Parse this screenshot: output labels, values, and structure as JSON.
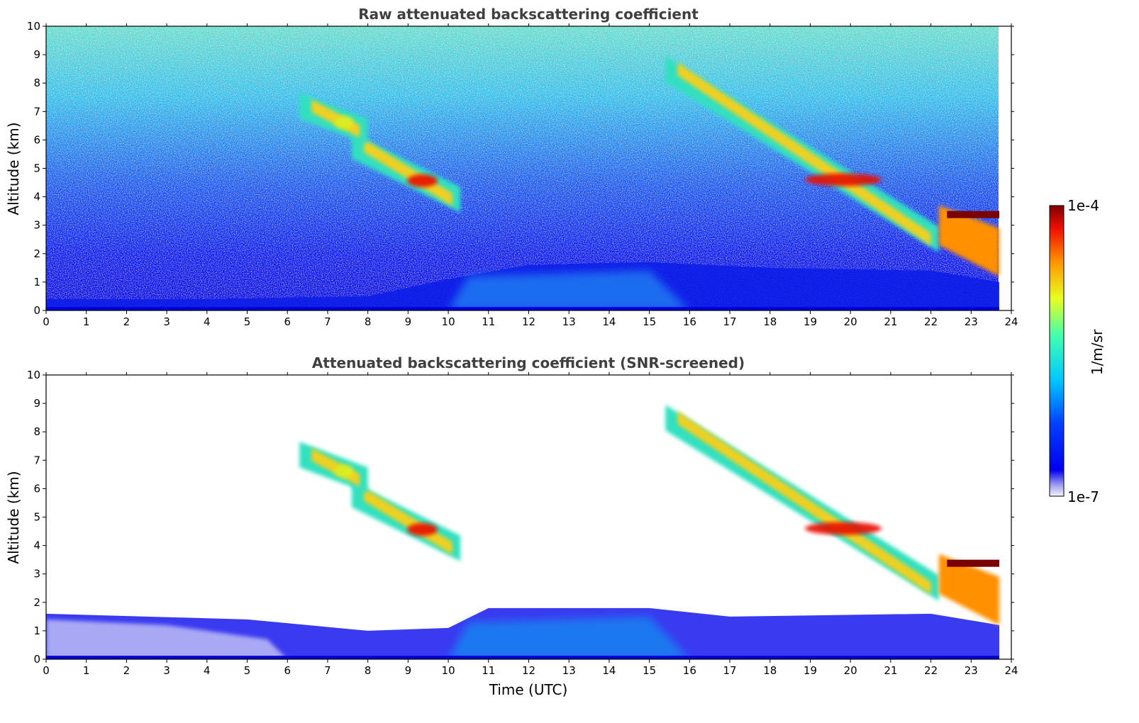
{
  "chart_data": [
    {
      "type": "heatmap",
      "title": "Raw attenuated backscattering coefficient",
      "xlabel": "",
      "ylabel": "Altitude (km)",
      "xlim": [
        0,
        24
      ],
      "ylim": [
        0,
        10
      ],
      "xticks": [
        "0",
        "1",
        "2",
        "3",
        "4",
        "5",
        "6",
        "7",
        "8",
        "9",
        "10",
        "11",
        "12",
        "13",
        "14",
        "15",
        "16",
        "17",
        "18",
        "19",
        "20",
        "21",
        "22",
        "23",
        "24"
      ],
      "yticks": [
        "0",
        "1",
        "2",
        "3",
        "4",
        "5",
        "6",
        "7",
        "8",
        "9",
        "10"
      ],
      "data_end_time": 23.7,
      "noise_background": true,
      "features": [
        {
          "kind": "boundary_layer",
          "t_start": 0,
          "t_end": 23.7,
          "top_km": [
            [
              0,
              0.4
            ],
            [
              4,
              0.4
            ],
            [
              8,
              0.5
            ],
            [
              10,
              1.1
            ],
            [
              12,
              1.6
            ],
            [
              15,
              1.7
            ],
            [
              18,
              1.5
            ],
            [
              22,
              1.4
            ],
            [
              23.7,
              1.0
            ]
          ]
        },
        {
          "kind": "cloud_band",
          "t_start": 7.6,
          "t_end": 10.3,
          "alt_start_km": 5.8,
          "alt_end_km": 3.9,
          "peak": "red"
        },
        {
          "kind": "cloud_band",
          "t_start": 6.3,
          "t_end": 8.0,
          "alt_start_km": 7.2,
          "alt_end_km": 6.3,
          "peak": "yellow"
        },
        {
          "kind": "cloud_band",
          "t_start": 15.4,
          "t_end": 22.2,
          "alt_start_km": 8.5,
          "alt_end_km": 2.5,
          "peak": "red"
        },
        {
          "kind": "cloud_layer",
          "t_start": 22.4,
          "t_end": 23.7,
          "alt_km": 3.4,
          "peak": "dark-red"
        }
      ]
    },
    {
      "type": "heatmap",
      "title": "Attenuated backscattering coefficient (SNR-screened)",
      "xlabel": "Time (UTC)",
      "ylabel": "Altitude (km)",
      "xlim": [
        0,
        24
      ],
      "ylim": [
        0,
        10
      ],
      "xticks": [
        "0",
        "1",
        "2",
        "3",
        "4",
        "5",
        "6",
        "7",
        "8",
        "9",
        "10",
        "11",
        "12",
        "13",
        "14",
        "15",
        "16",
        "17",
        "18",
        "19",
        "20",
        "21",
        "22",
        "23",
        "24"
      ],
      "yticks": [
        "0",
        "1",
        "2",
        "3",
        "4",
        "5",
        "6",
        "7",
        "8",
        "9",
        "10"
      ],
      "data_end_time": 23.7,
      "noise_background": false,
      "features": [
        {
          "kind": "boundary_layer",
          "t_start": 0,
          "t_end": 23.7,
          "top_km": [
            [
              0,
              1.6
            ],
            [
              5,
              1.4
            ],
            [
              8,
              1.0
            ],
            [
              10,
              1.1
            ],
            [
              11,
              1.8
            ],
            [
              15,
              1.8
            ],
            [
              17,
              1.5
            ],
            [
              22,
              1.6
            ],
            [
              23.7,
              1.2
            ]
          ]
        },
        {
          "kind": "cloud_band",
          "t_start": 7.6,
          "t_end": 10.3,
          "alt_start_km": 5.8,
          "alt_end_km": 3.9,
          "peak": "red"
        },
        {
          "kind": "cloud_band",
          "t_start": 6.3,
          "t_end": 8.0,
          "alt_start_km": 7.2,
          "alt_end_km": 6.3,
          "peak": "yellow"
        },
        {
          "kind": "cloud_band",
          "t_start": 15.4,
          "t_end": 22.2,
          "alt_start_km": 8.5,
          "alt_end_km": 2.5,
          "peak": "red"
        },
        {
          "kind": "cloud_layer",
          "t_start": 22.4,
          "t_end": 23.7,
          "alt_km": 3.4,
          "peak": "dark-red"
        }
      ]
    }
  ],
  "colorbar": {
    "label": "1/m/sr",
    "max_label": "1e-4",
    "min_label": "1e-7",
    "colormap": "jet",
    "scale": "log"
  },
  "colors": {
    "title": "#404040",
    "axis": "#000000"
  }
}
